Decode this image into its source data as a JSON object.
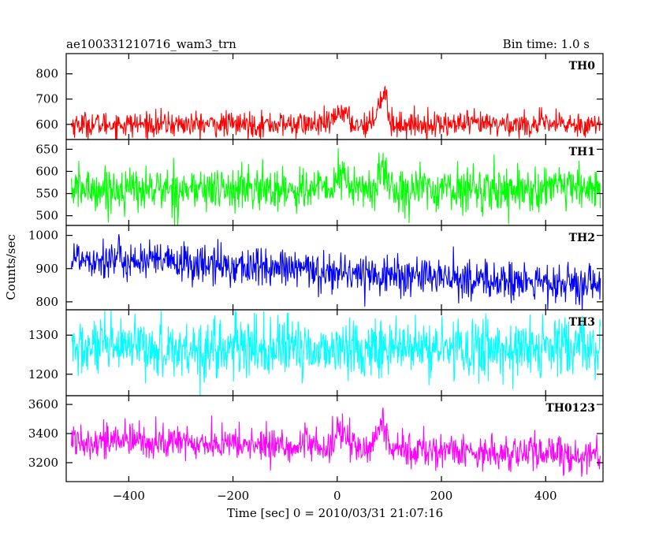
{
  "header": {
    "left_title": "ae100331210716_wam3_trn",
    "right_title": "Bin time: 1.0 s"
  },
  "chart_data": {
    "type": "line",
    "xlabel": "Time [sec] 0 = 2010/03/31 21:07:16",
    "ylabel": "Counts/sec",
    "xlim": [
      -520,
      510
    ],
    "xticks": [
      -400,
      -200,
      0,
      200,
      400
    ],
    "xtick_labels": [
      "−400",
      "−200",
      "0",
      "200",
      "400"
    ],
    "x_start": -510,
    "x_end": 505,
    "bin_time": 1.0,
    "grid": false,
    "panels": [
      {
        "name": "TH0",
        "color": "#ff0000",
        "ylim": [
          540,
          880
        ],
        "yticks": [
          600,
          700,
          800
        ],
        "baseline": 600,
        "noise": 25,
        "events": [
          {
            "t": 8,
            "amp": 55,
            "width": 10
          },
          {
            "t": 80,
            "amp": 90,
            "width": 6
          },
          {
            "t": 92,
            "amp": 130,
            "width": 4
          }
        ]
      },
      {
        "name": "TH1",
        "color": "#00ff00",
        "ylim": [
          478,
          672
        ],
        "yticks": [
          500,
          550,
          600,
          650
        ],
        "baseline": 560,
        "noise": 25,
        "events": [
          {
            "t": 8,
            "amp": 30,
            "width": 10
          },
          {
            "t": 88,
            "amp": 50,
            "width": 6
          }
        ]
      },
      {
        "name": "TH2",
        "color": "#0000ff",
        "ylim": [
          776,
          1030
        ],
        "yticks": [
          800,
          900,
          1000
        ],
        "baseline_start": 935,
        "baseline_end": 845,
        "noise": 30,
        "events": []
      },
      {
        "name": "TH3",
        "color": "#00ffff",
        "ylim": [
          1145,
          1365
        ],
        "yticks": [
          1200,
          1300
        ],
        "baseline": 1265,
        "noise": 38,
        "events": []
      },
      {
        "name": "TH0123",
        "color": "#ff00ff",
        "ylim": [
          3070,
          3660
        ],
        "yticks": [
          3200,
          3400,
          3600
        ],
        "baseline_start": 3360,
        "baseline_end": 3250,
        "noise": 60,
        "events": [
          {
            "t": 8,
            "amp": 110,
            "width": 10
          },
          {
            "t": 85,
            "amp": 200,
            "width": 7
          }
        ]
      }
    ]
  }
}
